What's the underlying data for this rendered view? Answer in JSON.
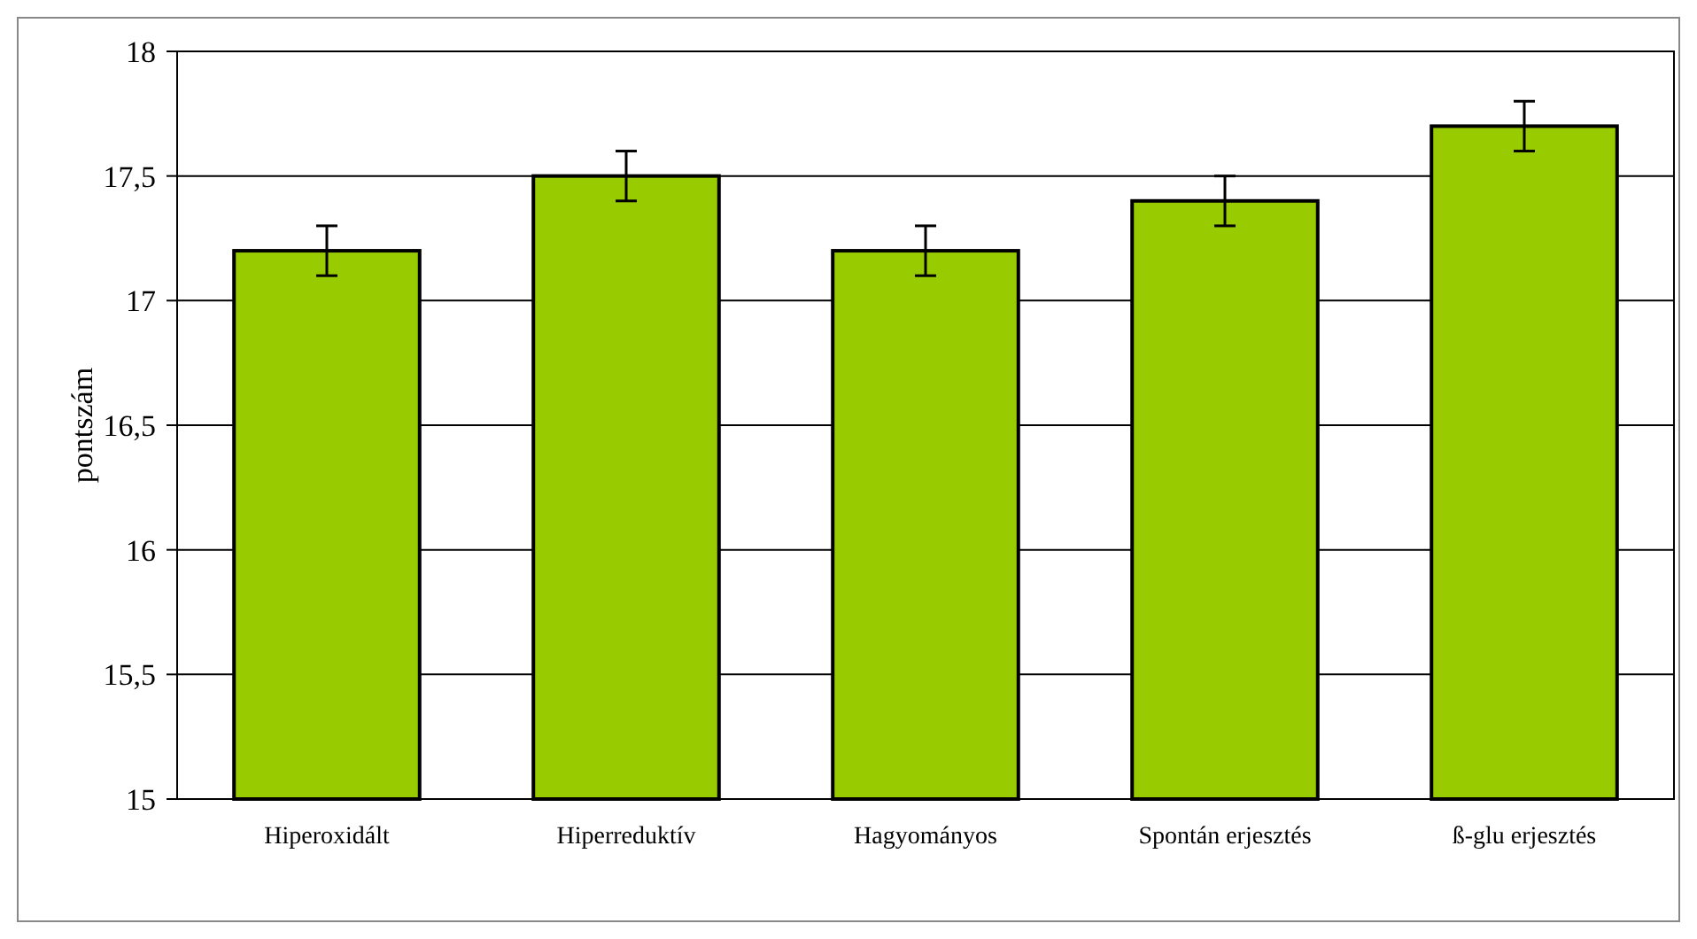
{
  "chart_data": {
    "type": "bar",
    "ylabel": "pontszám",
    "categories": [
      "Hiperoxidált",
      "Hiperreduktív",
      "Hagyományos",
      "Spontán erjesztés",
      "ß-glu erjesztés"
    ],
    "values": [
      17.2,
      17.5,
      17.2,
      17.4,
      17.7
    ],
    "errors": [
      0.1,
      0.1,
      0.1,
      0.1,
      0.1
    ],
    "color": "#99cc00",
    "ylim": [
      15,
      18
    ],
    "yticks": [
      15,
      {
        "value": 15.5,
        "label": "15,5"
      },
      16,
      {
        "value": 16.5,
        "label": "16,5"
      },
      17,
      {
        "value": 17.5,
        "label": "17,5"
      },
      18
    ],
    "grid": "y"
  }
}
